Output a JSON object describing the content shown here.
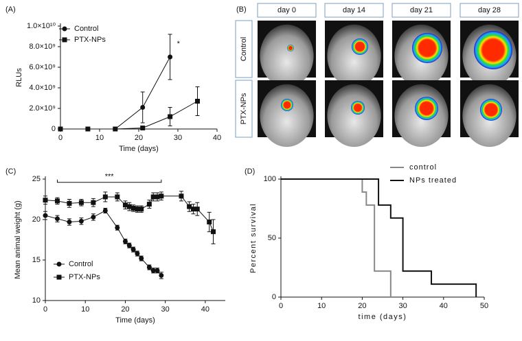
{
  "chart_data": [
    {
      "type": "line",
      "panel_label": "(A)",
      "xlabel": "Time (days)",
      "ylabel": "RLUs",
      "annotation": "*",
      "legend": "upper left",
      "xlim": [
        0,
        40
      ],
      "xticks": [
        0,
        10,
        20,
        30,
        40
      ],
      "ylim": [
        0,
        10000000000
      ],
      "yticks": [
        0,
        {
          "value": 2000000000,
          "label": "2.0×10⁹"
        },
        {
          "value": 4000000000,
          "label": "4.0×10⁹"
        },
        {
          "value": 6000000000,
          "label": "6.0×10⁹"
        },
        {
          "value": 8000000000,
          "label": "8.0×10⁹"
        },
        {
          "value": 10000000000,
          "label": "1.0×10¹⁰"
        }
      ],
      "series": [
        {
          "name": "Control",
          "color": "#111111",
          "marker": "circle",
          "x": [
            0,
            7,
            14,
            21,
            28
          ],
          "values": [
            0,
            0,
            0,
            2100000000,
            7000000000
          ],
          "errors": [
            null,
            null,
            null,
            1500000000,
            2200000000
          ]
        },
        {
          "name": "PTX-NPs",
          "color": "#111111",
          "marker": "square",
          "x": [
            0,
            7,
            14,
            21,
            28,
            35
          ],
          "values": [
            0,
            0,
            0,
            100000000,
            1200000000,
            2700000000
          ],
          "errors": [
            null,
            null,
            null,
            null,
            900000000,
            1400000000
          ]
        }
      ]
    },
    {
      "type": "line",
      "panel_label": "(C)",
      "xlabel": "Time (days)",
      "ylabel": "Mean animal weight (g)",
      "annotation": "***",
      "legend": "lower left",
      "xlim": [
        0,
        45
      ],
      "xticks": [
        0,
        10,
        20,
        30,
        40
      ],
      "ylim": [
        10,
        25
      ],
      "yticks": [
        10,
        15,
        20,
        25
      ],
      "series": [
        {
          "name": "Control",
          "color": "#111111",
          "marker": "circle",
          "x": [
            0,
            3,
            6,
            9,
            12,
            15,
            18,
            20,
            21,
            22,
            23,
            24,
            26,
            27,
            28,
            29
          ],
          "values": [
            20.5,
            20.1,
            19.7,
            19.8,
            20.3,
            21.1,
            19.0,
            17.3,
            16.8,
            16.3,
            15.8,
            15.2,
            14.1,
            13.7,
            13.7,
            13.1
          ],
          "errors": [
            0.5,
            0.4,
            0.4,
            0.4,
            0.4,
            0.3,
            0.3,
            0.3,
            0.3,
            0.3,
            0.3,
            0.3,
            0.3,
            0.3,
            0.3,
            0.4
          ]
        },
        {
          "name": "PTX-NPs",
          "color": "#111111",
          "marker": "square",
          "x": [
            0,
            3,
            6,
            9,
            12,
            15,
            18,
            20,
            21,
            22,
            23,
            24,
            26,
            27,
            28,
            29,
            34,
            36,
            37,
            38,
            41,
            42
          ],
          "values": [
            22.4,
            22.3,
            22.0,
            22.1,
            22.1,
            22.8,
            22.8,
            21.8,
            21.6,
            21.4,
            21.3,
            21.3,
            21.9,
            22.8,
            22.8,
            22.9,
            22.9,
            21.6,
            21.3,
            21.3,
            19.7,
            18.5
          ],
          "errors": [
            0.5,
            0.4,
            0.5,
            0.4,
            0.5,
            0.6,
            0.5,
            0.5,
            0.5,
            0.4,
            0.4,
            0.4,
            0.5,
            0.5,
            0.5,
            0.5,
            0.6,
            0.6,
            0.6,
            0.8,
            1.2,
            1.5
          ]
        }
      ]
    },
    {
      "type": "step",
      "panel_label": "(D)",
      "xlabel": "time (days)",
      "ylabel": "Percent survival",
      "legend": "upper right",
      "xlim": [
        0,
        50
      ],
      "xticks": [
        0,
        10,
        20,
        30,
        40,
        50
      ],
      "ylim": [
        0,
        100
      ],
      "yticks": [
        0,
        50,
        100
      ],
      "series": [
        {
          "name": "control",
          "color": "#888888",
          "x": [
            0,
            20,
            21,
            23,
            27
          ],
          "values": [
            100,
            89,
            78,
            22,
            0
          ]
        },
        {
          "name": "NPs treated",
          "color": "#111111",
          "x": [
            0,
            24,
            27,
            30,
            37,
            48
          ],
          "values": [
            100,
            78,
            67,
            22,
            11,
            0
          ]
        }
      ]
    }
  ],
  "image_panel": {
    "panel_label": "(B)",
    "columns": [
      "day 0",
      "day 14",
      "day 21",
      "day 28"
    ],
    "rows": [
      "Control",
      "PTX-NPs"
    ]
  }
}
